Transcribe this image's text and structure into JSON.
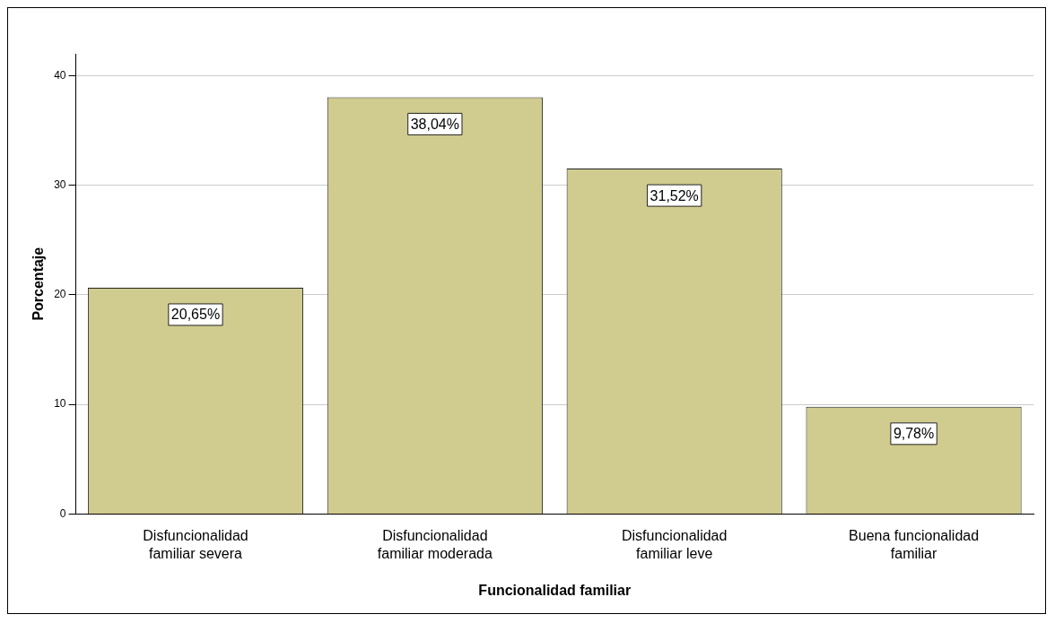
{
  "chart_data": {
    "type": "bar",
    "xlabel": "Funcionalidad familiar",
    "ylabel": "Porcentaje",
    "categories": [
      "Disfuncionalidad familiar severa",
      "Disfuncionalidad familiar moderada",
      "Disfuncionalidad familiar leve",
      "Buena funcionalidad familiar"
    ],
    "values": [
      20.65,
      38.04,
      31.52,
      9.78
    ],
    "color": "#d0cb8f",
    "value_labels": [
      "20,65%",
      "38,04%",
      "31,52%",
      "9,78%"
    ],
    "ylim": [
      0,
      42
    ],
    "yticks": [
      0,
      10,
      20,
      30,
      40
    ],
    "grid": "y",
    "legend": false
  }
}
